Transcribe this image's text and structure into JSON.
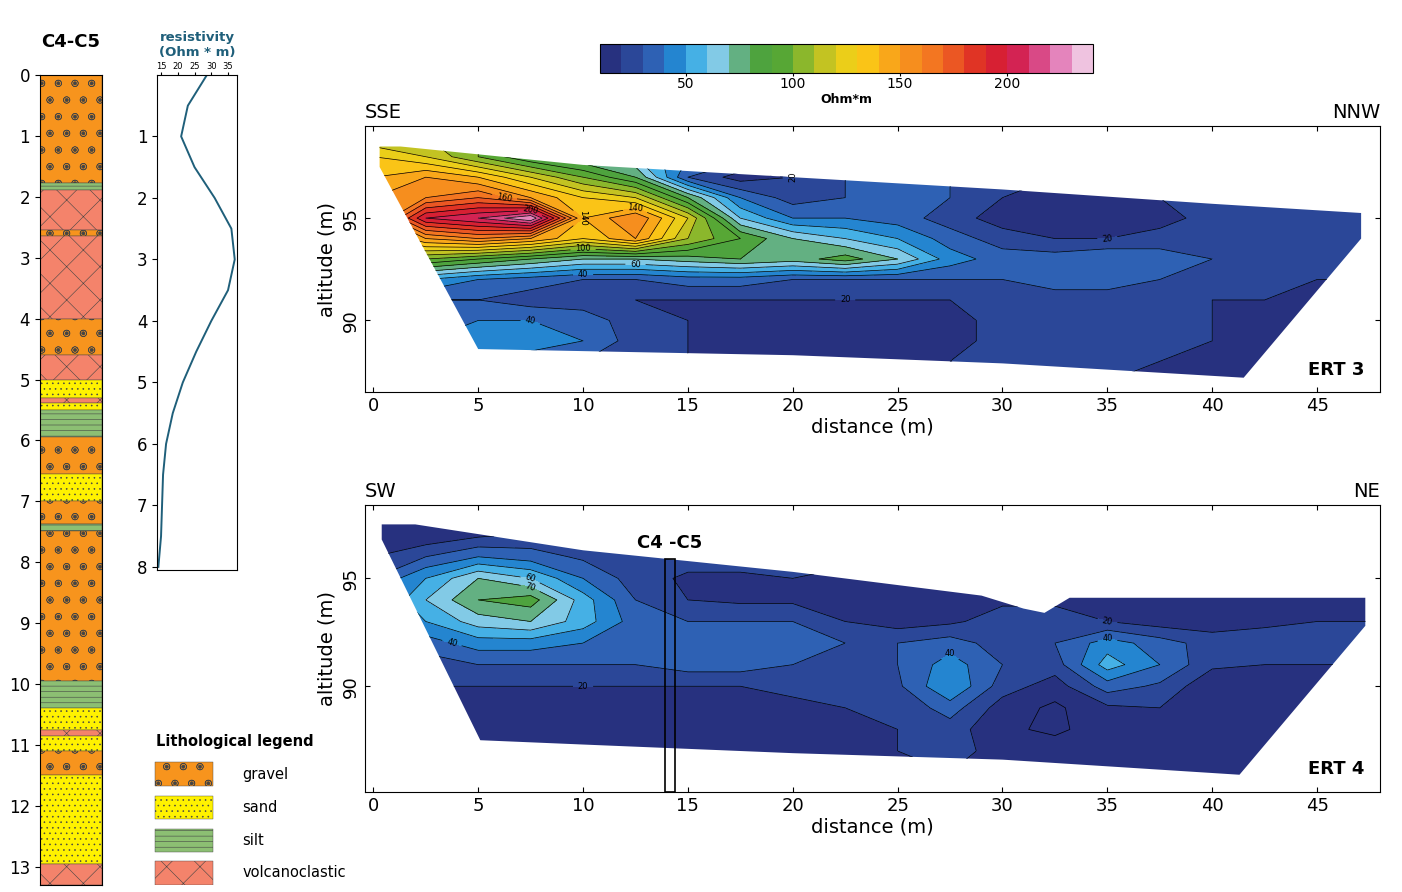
{
  "chart_data": [
    {
      "type": "lithology_log",
      "title": "C4-C5",
      "ylim": [
        13.3,
        0
      ],
      "yticks": [
        0,
        1,
        2,
        3,
        4,
        5,
        6,
        7,
        8,
        9,
        10,
        11,
        12,
        13
      ],
      "legend_title": "Lithological legend",
      "lithologies": [
        {
          "name": "gravel",
          "color": "#f7941d"
        },
        {
          "name": "sand",
          "color": "#fff200"
        },
        {
          "name": "silt",
          "color": "#8cbf73"
        },
        {
          "name": "volcanoclastic",
          "color": "#f4836b"
        }
      ],
      "layers": [
        {
          "top": 0,
          "bottom": 1.78,
          "lithology": "gravel"
        },
        {
          "top": 1.78,
          "bottom": 1.88,
          "lithology": "silt"
        },
        {
          "top": 1.88,
          "bottom": 2.55,
          "lithology": "volcanoclastic"
        },
        {
          "top": 2.55,
          "bottom": 2.65,
          "lithology": "gravel"
        },
        {
          "top": 2.65,
          "bottom": 4.0,
          "lithology": "volcanoclastic"
        },
        {
          "top": 4.0,
          "bottom": 4.6,
          "lithology": "gravel"
        },
        {
          "top": 4.6,
          "bottom": 5.0,
          "lithology": "volcanoclastic"
        },
        {
          "top": 5.0,
          "bottom": 5.3,
          "lithology": "sand"
        },
        {
          "top": 5.3,
          "bottom": 5.38,
          "lithology": "volcanoclastic"
        },
        {
          "top": 5.38,
          "bottom": 5.5,
          "lithology": "sand"
        },
        {
          "top": 5.5,
          "bottom": 5.95,
          "lithology": "silt"
        },
        {
          "top": 5.95,
          "bottom": 6.55,
          "lithology": "gravel"
        },
        {
          "top": 6.55,
          "bottom": 7.0,
          "lithology": "sand"
        },
        {
          "top": 7.0,
          "bottom": 7.38,
          "lithology": "gravel"
        },
        {
          "top": 7.38,
          "bottom": 7.48,
          "lithology": "silt"
        },
        {
          "top": 7.48,
          "bottom": 9.95,
          "lithology": "gravel"
        },
        {
          "top": 9.95,
          "bottom": 10.4,
          "lithology": "silt"
        },
        {
          "top": 10.4,
          "bottom": 10.75,
          "lithology": "sand"
        },
        {
          "top": 10.75,
          "bottom": 10.85,
          "lithology": "volcanoclastic"
        },
        {
          "top": 10.85,
          "bottom": 11.1,
          "lithology": "sand"
        },
        {
          "top": 11.1,
          "bottom": 11.5,
          "lithology": "gravel"
        },
        {
          "top": 11.5,
          "bottom": 12.95,
          "lithology": "sand"
        },
        {
          "top": 12.95,
          "bottom": 13.3,
          "lithology": "volcanoclastic"
        }
      ]
    },
    {
      "type": "line",
      "title": "resistivity\n(Ohm * m)",
      "color": "#1f5f7a",
      "x": [
        28.7,
        23,
        21,
        25,
        31,
        36,
        37,
        35,
        30,
        25.5,
        21.5,
        18.5,
        16.5,
        15.6,
        15.3,
        15,
        14.2
      ],
      "y": [
        0,
        0.5,
        1,
        1.5,
        2,
        2.5,
        3,
        3.5,
        4,
        4.5,
        5,
        5.5,
        6,
        6.5,
        7,
        7.5,
        8
      ],
      "xlim": [
        13.8,
        37.7
      ],
      "xticks": [
        15,
        20,
        25,
        30,
        35
      ],
      "ylim": [
        8.05,
        0
      ],
      "yticks": [
        1,
        2,
        3,
        4,
        5,
        6,
        7,
        8
      ]
    },
    {
      "type": "colorbar",
      "label": "Ohm*m",
      "levels": [
        10,
        20,
        30,
        40,
        50,
        60,
        70,
        80,
        90,
        100,
        110,
        120,
        130,
        140,
        150,
        160,
        170,
        180,
        190,
        200,
        210,
        220,
        230,
        240
      ],
      "ticks": [
        50,
        100,
        150,
        200
      ]
    },
    {
      "type": "contour",
      "title": "ERT 3",
      "left_label": "SSE",
      "right_label": "NNW",
      "xlabel": "distance (m)",
      "ylabel": "altitude (m)",
      "xlim": [
        -0.4,
        48
      ],
      "xticks": [
        0,
        5,
        10,
        15,
        20,
        25,
        30,
        35,
        40,
        45
      ],
      "ylim": [
        86.5,
        99.5
      ],
      "yticks": [
        90,
        95
      ],
      "labeled_levels": [
        20,
        40,
        60,
        100,
        140,
        160,
        200
      ],
      "grid_x": [
        0,
        2.5,
        5,
        7.5,
        10,
        12.5,
        15,
        17.5,
        20,
        22.5,
        25,
        27.5,
        30,
        32.5,
        35,
        37.5,
        40,
        42.5,
        45,
        47.5
      ],
      "grid_altitude": [
        87,
        88,
        89,
        90,
        91,
        92,
        93,
        94,
        95,
        96,
        97,
        98,
        99
      ],
      "cells": [
        [
          20,
          20,
          20,
          20,
          20,
          20,
          20,
          20,
          20,
          20,
          20,
          20,
          20,
          20,
          20,
          20,
          20,
          20,
          20,
          20
        ],
        [
          30,
          35,
          40,
          35,
          30,
          25,
          20,
          20,
          20,
          20,
          18,
          20,
          22,
          22,
          22,
          20,
          20,
          20,
          20,
          20
        ],
        [
          35,
          40,
          45,
          45,
          40,
          25,
          20,
          20,
          20,
          18,
          15,
          18,
          22,
          25,
          22,
          22,
          20,
          20,
          20,
          20
        ],
        [
          35,
          35,
          40,
          40,
          35,
          25,
          20,
          20,
          20,
          18,
          15,
          18,
          22,
          25,
          25,
          22,
          20,
          20,
          20,
          20
        ],
        [
          40,
          30,
          30,
          25,
          25,
          20,
          20,
          20,
          20,
          20,
          20,
          20,
          25,
          25,
          25,
          25,
          20,
          20,
          20,
          20
        ],
        [
          60,
          50,
          40,
          35,
          30,
          30,
          35,
          35,
          30,
          30,
          30,
          30,
          30,
          35,
          35,
          30,
          25,
          25,
          20,
          20
        ],
        [
          90,
          100,
          90,
          80,
          70,
          70,
          75,
          80,
          75,
          85,
          70,
          45,
          35,
          35,
          40,
          35,
          30,
          25,
          25,
          25
        ],
        [
          120,
          150,
          160,
          150,
          130,
          150,
          110,
          90,
          70,
          60,
          50,
          35,
          25,
          20,
          20,
          25,
          30,
          30,
          30,
          30
        ],
        [
          140,
          200,
          210,
          230,
          140,
          160,
          120,
          60,
          40,
          40,
          35,
          25,
          15,
          12,
          12,
          15,
          25,
          30,
          30,
          30
        ],
        [
          150,
          160,
          170,
          150,
          130,
          120,
          80,
          40,
          25,
          30,
          35,
          30,
          20,
          15,
          15,
          20,
          25,
          30,
          30,
          30
        ],
        [
          140,
          150,
          140,
          120,
          100,
          80,
          30,
          15,
          20,
          30,
          35,
          30,
          25,
          20,
          20,
          25,
          30,
          30,
          30,
          30
        ],
        [
          130,
          120,
          100,
          80,
          70,
          60,
          40,
          35,
          30,
          35,
          35,
          30,
          30,
          30,
          30,
          30,
          30,
          30,
          30,
          30
        ],
        [
          110,
          110,
          100,
          90,
          80,
          70,
          60,
          50,
          40,
          35,
          30,
          30,
          30,
          30,
          30,
          30,
          30,
          30,
          30,
          30
        ]
      ],
      "outline": {
        "x": [
          0.3,
          1.3,
          10,
          20,
          30,
          40,
          47.1,
          47.1,
          41.5,
          30,
          20,
          10,
          5,
          0.3
        ],
        "altitude": [
          98.5,
          98.5,
          97.6,
          97.0,
          96.4,
          95.7,
          95.25,
          94.0,
          87.2,
          87.9,
          88.3,
          88.5,
          88.6,
          97.5
        ]
      }
    },
    {
      "type": "contour",
      "title": "ERT 4",
      "left_label": "SW",
      "right_label": "NE",
      "xlabel": "distance (m)",
      "ylabel": "altitude (m)",
      "xlim": [
        -0.4,
        48
      ],
      "xticks": [
        0,
        5,
        10,
        15,
        20,
        25,
        30,
        35,
        40,
        45
      ],
      "ylim": [
        85.1,
        98.4
      ],
      "yticks": [
        90,
        95
      ],
      "labeled_levels": [
        20,
        40,
        60,
        70
      ],
      "grid_x": [
        0,
        2.5,
        5,
        7.5,
        10,
        12.5,
        15,
        17.5,
        20,
        22.5,
        25,
        27.5,
        30,
        32.5,
        35,
        37.5,
        40,
        42.5,
        45,
        47.5
      ],
      "grid_altitude": [
        85,
        86,
        87,
        88,
        89,
        90,
        91,
        92,
        93,
        94,
        95,
        96,
        97,
        98
      ],
      "cells": [
        [
          20,
          20,
          20,
          20,
          20,
          20,
          20,
          20,
          20,
          20,
          20,
          20,
          20,
          20,
          20,
          20,
          20,
          20,
          20,
          20
        ],
        [
          20,
          20,
          20,
          20,
          18,
          18,
          18,
          18,
          20,
          20,
          20,
          20,
          20,
          20,
          20,
          20,
          20,
          20,
          20,
          20
        ],
        [
          20,
          20,
          20,
          18,
          16,
          15,
          15,
          16,
          18,
          20,
          20,
          22,
          18,
          15,
          18,
          20,
          20,
          20,
          20,
          20
        ],
        [
          20,
          20,
          18,
          18,
          16,
          14,
          14,
          15,
          18,
          20,
          20,
          25,
          12,
          8,
          15,
          20,
          18,
          20,
          20,
          20
        ],
        [
          20,
          20,
          18,
          18,
          18,
          16,
          15,
          16,
          18,
          20,
          22,
          35,
          15,
          8,
          18,
          20,
          15,
          18,
          20,
          20
        ],
        [
          20,
          20,
          20,
          20,
          20,
          20,
          20,
          20,
          22,
          22,
          28,
          50,
          25,
          15,
          35,
          28,
          12,
          15,
          18,
          20
        ],
        [
          20,
          25,
          30,
          30,
          30,
          30,
          35,
          35,
          30,
          25,
          30,
          45,
          30,
          25,
          55,
          40,
          22,
          20,
          20,
          20
        ],
        [
          25,
          35,
          45,
          45,
          40,
          35,
          35,
          35,
          35,
          30,
          30,
          35,
          25,
          30,
          45,
          35,
          25,
          25,
          22,
          22
        ],
        [
          30,
          50,
          65,
          70,
          55,
          35,
          30,
          30,
          30,
          20,
          15,
          18,
          25,
          25,
          20,
          15,
          15,
          18,
          20,
          20
        ],
        [
          35,
          60,
          80,
          85,
          55,
          30,
          20,
          18,
          18,
          14,
          12,
          14,
          18,
          18,
          15,
          12,
          12,
          15,
          18,
          20
        ],
        [
          30,
          50,
          70,
          60,
          40,
          25,
          18,
          18,
          20,
          18,
          15,
          18,
          20,
          20,
          18,
          18,
          20,
          20,
          20,
          20
        ],
        [
          20,
          30,
          40,
          35,
          28,
          25,
          25,
          25,
          25,
          22,
          20,
          20,
          20,
          20,
          20,
          20,
          20,
          20,
          20,
          20
        ],
        [
          10,
          12,
          18,
          22,
          25,
          25,
          25,
          25,
          25,
          25,
          20,
          20,
          20,
          20,
          20,
          20,
          20,
          20,
          20,
          20
        ],
        [
          10,
          12,
          15,
          20,
          20,
          20,
          20,
          20,
          20,
          20,
          20,
          20,
          20,
          20,
          20,
          20,
          20,
          20,
          20,
          20
        ]
      ],
      "outline": {
        "x": [
          0.4,
          2,
          10,
          20,
          29,
          31,
          32,
          33.2,
          47.3,
          47.3,
          41.3,
          30,
          20,
          10,
          5.1,
          0.4
        ],
        "altitude": [
          97.5,
          97.5,
          96.3,
          95.3,
          94.2,
          93.6,
          93.4,
          94.1,
          94.1,
          92.8,
          85.9,
          86.6,
          86.9,
          87.3,
          87.5,
          96.8
        ]
      },
      "borehole": {
        "label": "C4 -C5",
        "x": [
          13.9,
          14.4
        ],
        "top": 95.9
      }
    }
  ]
}
